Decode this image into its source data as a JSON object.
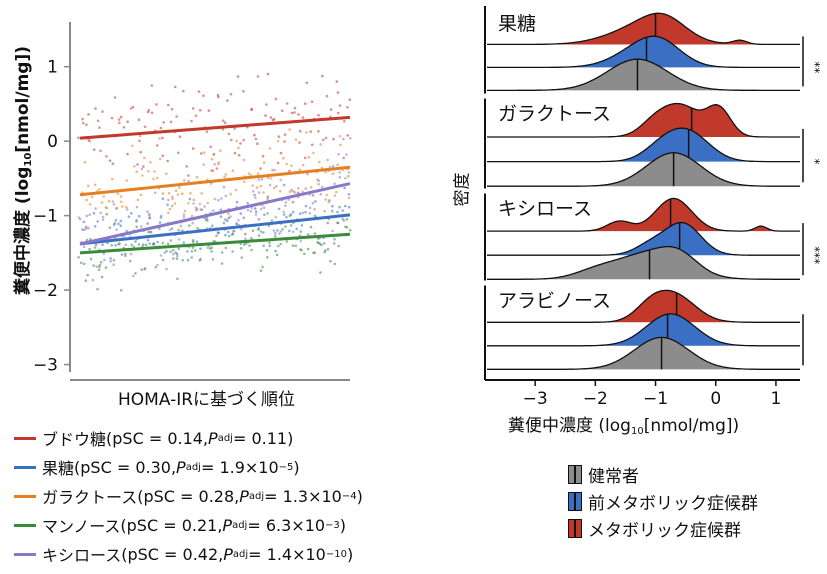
{
  "chart_data": [
    {
      "type": "scatter",
      "xlabel": "HOMA-IRに基づく順位",
      "ylabel_main": "糞便中濃度 (log",
      "ylabel_sub": "10",
      "ylabel_tail": "[nmol/mg])",
      "ylim": [
        -3.1,
        1.6
      ],
      "yticks": [
        1,
        0,
        -1,
        -2,
        -3
      ],
      "series": [
        {
          "name": "ブドウ糖",
          "color": "#c0392b",
          "trend": [
            0.04,
            0.32
          ],
          "mean": 0.2,
          "spread": 0.45
        },
        {
          "name": "果糖",
          "color": "#3a6fc4",
          "trend": [
            -1.38,
            -0.99
          ],
          "mean": -1.2,
          "spread": 0.35
        },
        {
          "name": "ガラクトース",
          "color": "#e67e22",
          "trend": [
            -0.72,
            -0.35
          ],
          "mean": -0.55,
          "spread": 0.45
        },
        {
          "name": "マンノース",
          "color": "#3a8a3a",
          "trend": [
            -1.5,
            -1.25
          ],
          "mean": -1.4,
          "spread": 0.35
        },
        {
          "name": "キシロース",
          "color": "#8878c8",
          "trend": [
            -1.38,
            -0.57
          ],
          "mean": -1.0,
          "spread": 0.5
        }
      ],
      "legend": [
        {
          "name": "ブドウ糖",
          "color": "#c0392b",
          "psc": "(pSC = 0.14, ",
          "p": "P",
          "psub": "adj",
          "val": " = 0.11)",
          "exp": ""
        },
        {
          "name": "果糖",
          "color": "#3a6fc4",
          "psc": "(pSC = 0.30, ",
          "p": "P",
          "psub": "adj",
          "val": " = 1.9×10",
          "exp": "−5",
          "close": ")"
        },
        {
          "name": "ガラクトース",
          "color": "#e67e22",
          "psc": "(pSC = 0.28, ",
          "p": "P",
          "psub": "adj",
          "val": " = 1.3×10",
          "exp": "−4",
          "close": ")"
        },
        {
          "name": "マンノース",
          "color": "#3a8a3a",
          "psc": "(pSC = 0.21, ",
          "p": "P",
          "psub": "adj",
          "val": " = 6.3×10",
          "exp": "−3",
          "close": ")"
        },
        {
          "name": "キシロース",
          "color": "#8878c8",
          "psc": "(pSC = 0.42, ",
          "p": "P",
          "psub": "adj",
          "val": " = 1.4×10",
          "exp": "−10",
          "close": ")"
        }
      ]
    },
    {
      "type": "area",
      "xlabel_main": "糞便中濃度 (log",
      "xlabel_sub": "10",
      "xlabel_tail": "[nmol/mg])",
      "ylabel": "密度",
      "xlim": [
        -3.8,
        1.4
      ],
      "xticks": [
        -3,
        -2,
        -1,
        0,
        1
      ],
      "groups": [
        {
          "name": "果糖",
          "sig": "**",
          "ridges": [
            {
              "group": "メタボリック症候群",
              "color": "#c0392b",
              "median": -1.0,
              "peaks": [
                [
                  -1.2,
                  0.55,
                  0.9
                ],
                [
                  -0.85,
                  0.35,
                  0.8
                ],
                [
                  0.4,
                  0.12,
                  0.2
                ]
              ]
            },
            {
              "group": "前メタボリック症候群",
              "color": "#3a6fc4",
              "median": -1.15,
              "peaks": [
                [
                  -1.2,
                  0.45,
                  0.95
                ],
                [
                  -0.9,
                  0.35,
                  0.7
                ]
              ]
            },
            {
              "group": "健常者",
              "color": "#8c8c8c",
              "median": -1.3,
              "peaks": [
                [
                  -1.3,
                  0.5,
                  1.0
                ]
              ]
            }
          ]
        },
        {
          "name": "ガラクトース",
          "sig": "*",
          "ridges": [
            {
              "group": "メタボリック症候群",
              "color": "#c0392b",
              "median": -0.4,
              "peaks": [
                [
                  -0.55,
                  0.3,
                  0.8
                ],
                [
                  0.05,
                  0.2,
                  0.75
                ],
                [
                  -1.0,
                  0.25,
                  0.4
                ]
              ]
            },
            {
              "group": "前メタボリック症候群",
              "color": "#3a6fc4",
              "median": -0.45,
              "peaks": [
                [
                  -0.45,
                  0.35,
                  1.0
                ],
                [
                  -0.9,
                  0.3,
                  0.45
                ]
              ]
            },
            {
              "group": "健常者",
              "color": "#8c8c8c",
              "median": -0.7,
              "peaks": [
                [
                  -0.7,
                  0.45,
                  1.0
                ]
              ]
            }
          ]
        },
        {
          "name": "キシロース",
          "sig": "***",
          "ridges": [
            {
              "group": "メタボリック症候群",
              "color": "#c0392b",
              "median": -0.75,
              "peaks": [
                [
                  -0.7,
                  0.3,
                  1.0
                ],
                [
                  -1.6,
                  0.2,
                  0.3
                ],
                [
                  0.75,
                  0.1,
                  0.15
                ]
              ]
            },
            {
              "group": "前メタボリック症候群",
              "color": "#3a6fc4",
              "median": -0.6,
              "peaks": [
                [
                  -0.55,
                  0.3,
                  1.0
                ],
                [
                  -1.1,
                  0.25,
                  0.3
                ]
              ]
            },
            {
              "group": "健常者",
              "color": "#8c8c8c",
              "median": -1.1,
              "peaks": [
                [
                  -1.1,
                  0.55,
                  0.8
                ],
                [
                  -0.6,
                  0.3,
                  0.4
                ],
                [
                  -2.0,
                  0.35,
                  0.2
                ]
              ]
            }
          ]
        },
        {
          "name": "アラビノース",
          "sig": "",
          "ridges": [
            {
              "group": "メタボリック症候群",
              "color": "#c0392b",
              "median": -0.65,
              "peaks": [
                [
                  -0.7,
                  0.35,
                  1.0
                ],
                [
                  -1.1,
                  0.25,
                  0.4
                ]
              ]
            },
            {
              "group": "前メタボリック症候群",
              "color": "#3a6fc4",
              "median": -0.8,
              "peaks": [
                [
                  -0.75,
                  0.4,
                  1.0
                ]
              ]
            },
            {
              "group": "健常者",
              "color": "#8c8c8c",
              "median": -0.9,
              "peaks": [
                [
                  -0.9,
                  0.45,
                  1.0
                ]
              ]
            }
          ]
        }
      ],
      "legend": [
        {
          "name": "健常者",
          "color": "#8c8c8c"
        },
        {
          "name": "前メタボリック症候群",
          "color": "#3a6fc4"
        },
        {
          "name": "メタボリック症候群",
          "color": "#c0392b"
        }
      ]
    }
  ]
}
